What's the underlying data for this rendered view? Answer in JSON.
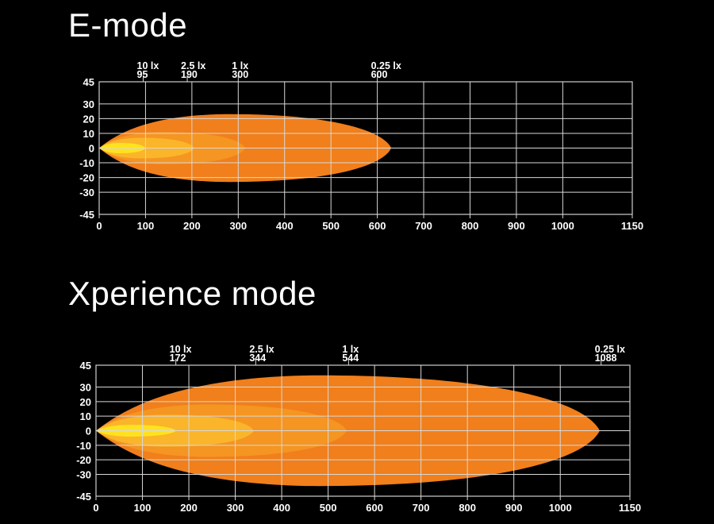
{
  "titles": [
    "E-mode",
    "Xperience mode"
  ],
  "chart_data": [
    {
      "type": "area",
      "title": "E-mode",
      "xlabel": "",
      "ylabel": "",
      "xlim": [
        0,
        1150
      ],
      "ylim": [
        -45,
        45
      ],
      "x_ticks": [
        "0",
        "100",
        "200",
        "300",
        "400",
        "500",
        "600",
        "700",
        "800",
        "900",
        "1000",
        "1150"
      ],
      "y_ticks": [
        "45",
        "30",
        "20",
        "10",
        "0",
        "-10",
        "-20",
        "-30",
        "-45"
      ],
      "grid": true,
      "isolux": [
        {
          "lux_label": "0.25 lx",
          "distance_label": "600",
          "reach": 630,
          "half_width": 23,
          "color": "#f07f1c"
        },
        {
          "lux_label": "1 lx",
          "distance_label": "300",
          "reach": 315,
          "half_width": 11,
          "color": "#f59522"
        },
        {
          "lux_label": "2.5 lx",
          "distance_label": "190",
          "reach": 205,
          "half_width": 7,
          "color": "#fbb52a"
        },
        {
          "lux_label": "10 lx",
          "distance_label": "95",
          "reach": 100,
          "half_width": 3.5,
          "color": "#ffe21f"
        }
      ]
    },
    {
      "type": "area",
      "title": "Xperience mode",
      "xlabel": "",
      "ylabel": "",
      "xlim": [
        0,
        1150
      ],
      "ylim": [
        -45,
        45
      ],
      "x_ticks": [
        "0",
        "100",
        "200",
        "300",
        "400",
        "500",
        "600",
        "700",
        "800",
        "900",
        "1000",
        "1150"
      ],
      "y_ticks": [
        "45",
        "30",
        "20",
        "10",
        "0",
        "-10",
        "-20",
        "-30",
        "-45"
      ],
      "grid": true,
      "isolux": [
        {
          "lux_label": "0.25 lx",
          "distance_label": "1088",
          "reach": 1085,
          "half_width": 38,
          "color": "#f07f1c"
        },
        {
          "lux_label": "1 lx",
          "distance_label": "544",
          "reach": 540,
          "half_width": 18,
          "color": "#f59522"
        },
        {
          "lux_label": "2.5 lx",
          "distance_label": "344",
          "reach": 340,
          "half_width": 11,
          "color": "#fbb52a"
        },
        {
          "lux_label": "10 lx",
          "distance_label": "172",
          "reach": 172,
          "half_width": 4,
          "color": "#ffe21f"
        }
      ]
    }
  ]
}
